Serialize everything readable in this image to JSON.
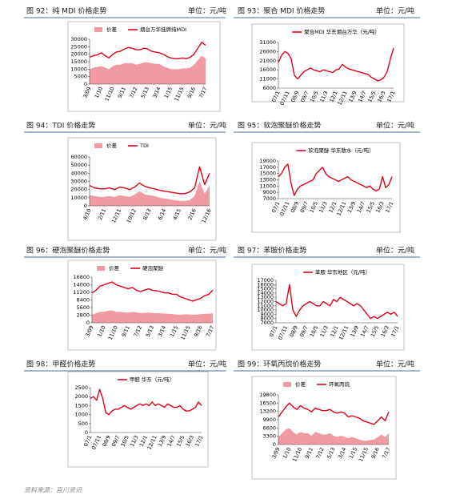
{
  "chart_data": [
    {
      "type": "line",
      "title": "图 92：纯 MDI 价格走势",
      "unit": "单位：元/吨",
      "categories": [
        "3/09",
        null,
        null,
        "1/10",
        null,
        null,
        "11/10",
        null,
        null,
        "9/11",
        null,
        null,
        "7/12",
        null,
        null,
        "5/13",
        null,
        null,
        "3/14",
        null,
        null,
        "1/15",
        null,
        null,
        "11/15",
        null,
        null,
        "9/16",
        null,
        null,
        "7/17"
      ],
      "ylim": [
        0,
        30000
      ],
      "yticks": [
        0,
        5000,
        10000,
        15000,
        20000,
        25000,
        30000
      ],
      "series": [
        {
          "name": "价差",
          "kind": "area",
          "color": "#f29aa3",
          "values": [
            10000,
            11000,
            11500,
            12000,
            11000,
            10000,
            12000,
            13000,
            13000,
            14000,
            14000,
            14000,
            13000,
            13500,
            14500,
            14500,
            14000,
            13500,
            13500,
            12000,
            11000,
            10000,
            10000,
            10000,
            10500,
            10500,
            11000,
            13000,
            16000,
            19000,
            17000
          ]
        },
        {
          "name": "烟台万华挂牌纯MDI",
          "kind": "line",
          "color": "#e3001b",
          "values": [
            18000,
            19000,
            19500,
            21000,
            19000,
            17500,
            20000,
            21500,
            22000,
            23500,
            24500,
            24000,
            23000,
            23000,
            24000,
            23500,
            22000,
            21500,
            21000,
            20000,
            18500,
            17500,
            17000,
            17000,
            17500,
            17000,
            18000,
            20000,
            24000,
            28000,
            26000
          ]
        }
      ]
    },
    {
      "type": "line",
      "title": "图 93：聚合 MDI 价格走势",
      "unit": "单位：元/吨",
      "categories": [
        "07/1",
        null,
        null,
        "07/11",
        null,
        null,
        "08/9",
        null,
        null,
        "09/7",
        null,
        null,
        "10/5",
        null,
        null,
        "11/3",
        null,
        null,
        "12/1",
        null,
        null,
        "12/11",
        null,
        null,
        "13/9",
        null,
        null,
        "14/7",
        null,
        null,
        "15/5",
        null,
        null,
        "16/3",
        null,
        null,
        "17/1"
      ],
      "ylim": [
        6000,
        31000
      ],
      "yticks": [
        6000,
        11000,
        16000,
        21000,
        26000,
        31000
      ],
      "series": [
        {
          "name": "聚合MDI 华东烟台万华（元/吨）",
          "kind": "line",
          "color": "#e3001b",
          "values": [
            20000,
            24000,
            26000,
            25000,
            22000,
            13000,
            11000,
            13000,
            15000,
            16000,
            17000,
            16000,
            15500,
            15000,
            16000,
            15500,
            15000,
            14500,
            16000,
            16500,
            19000,
            17500,
            16500,
            16000,
            15500,
            15000,
            14500,
            14000,
            13500,
            12000,
            11000,
            10000,
            10500,
            12000,
            15000,
            22000,
            28000
          ]
        }
      ]
    },
    {
      "type": "line",
      "title": "图 94：TDI 价格走势",
      "unit": "单位：元/吨",
      "categories": [
        "4/10",
        null,
        null,
        "2/11",
        null,
        null,
        "12/11",
        null,
        null,
        "10/12",
        null,
        null,
        "8/13",
        null,
        null,
        "6/14",
        null,
        null,
        "4/15",
        null,
        null,
        "2/16",
        null,
        null,
        "12/16"
      ],
      "ylim": [
        0,
        60000
      ],
      "yticks": [
        0,
        10000,
        20000,
        30000,
        40000,
        50000,
        60000
      ],
      "series": [
        {
          "name": "价差",
          "kind": "area",
          "color": "#f29aa3",
          "values": [
            13000,
            12000,
            11000,
            11000,
            12000,
            11000,
            13000,
            12000,
            11000,
            14000,
            18000,
            14000,
            13000,
            12000,
            10000,
            9000,
            8000,
            7000,
            6000,
            6000,
            7000,
            12000,
            30000,
            15000,
            25000
          ]
        },
        {
          "name": "TDI",
          "kind": "line",
          "color": "#e3001b",
          "values": [
            25000,
            22000,
            21000,
            21000,
            22000,
            20000,
            23000,
            22000,
            20000,
            23000,
            28000,
            24000,
            22000,
            21000,
            19000,
            18000,
            17000,
            16000,
            15000,
            15000,
            17000,
            22000,
            48000,
            26000,
            40000
          ]
        }
      ]
    },
    {
      "type": "line",
      "title": "图 95：软泡聚醚价格走势",
      "unit": "单位：元/吨",
      "categories": [
        "07/1",
        null,
        null,
        "07/11",
        null,
        null,
        "08/9",
        null,
        null,
        "09/7",
        null,
        null,
        "10/5",
        null,
        null,
        "11/3",
        null,
        null,
        "12/1",
        null,
        null,
        "12/11",
        null,
        null,
        "13/9",
        null,
        null,
        "14/7",
        null,
        null,
        "15/5",
        null,
        null,
        "16/3",
        null,
        null,
        "17/1"
      ],
      "ylim": [
        7000,
        19000
      ],
      "yticks": [
        7000,
        9000,
        11000,
        13000,
        15000,
        17000,
        19000
      ],
      "series": [
        {
          "name": "软泡聚醚 华东散水（元/吨）",
          "kind": "line",
          "color": "#e3001b",
          "values": [
            14000,
            15000,
            17000,
            18000,
            12000,
            8000,
            10000,
            11000,
            11500,
            12000,
            12500,
            13000,
            15000,
            16000,
            17000,
            15000,
            14000,
            13500,
            13000,
            12500,
            13000,
            13500,
            14000,
            13000,
            12500,
            12000,
            11500,
            11000,
            10500,
            11000,
            10000,
            9500,
            10000,
            14000,
            10500,
            11500,
            14000
          ]
        }
      ]
    },
    {
      "type": "line",
      "title": "图 96：硬泡聚醚价格走势",
      "unit": "单位：元/吨",
      "categories": [
        "3/09",
        null,
        null,
        "1/10",
        null,
        null,
        "11/10",
        null,
        null,
        "9/11",
        null,
        null,
        "7/12",
        null,
        null,
        "5/13",
        null,
        null,
        "3/14",
        null,
        null,
        "1/15",
        null,
        null,
        "11/15",
        null,
        null,
        "9/16",
        null,
        null,
        "7/17"
      ],
      "ylim": [
        0,
        16800
      ],
      "yticks": [
        0,
        2800,
        5600,
        8400,
        11200,
        14000,
        16800
      ],
      "series": [
        {
          "name": "价差",
          "kind": "area",
          "color": "#f29aa3",
          "values": [
            3000,
            3500,
            4000,
            4000,
            4500,
            4500,
            4000,
            4000,
            3800,
            3800,
            4000,
            3800,
            3600,
            3600,
            3800,
            3600,
            3500,
            3500,
            3400,
            3300,
            3200,
            3000,
            3000,
            3100,
            3100,
            3000,
            3000,
            3200,
            3300,
            3300,
            3500
          ]
        },
        {
          "name": "硬泡聚醚",
          "kind": "line",
          "color": "#e3001b",
          "values": [
            11000,
            12000,
            13500,
            14000,
            14500,
            15000,
            14000,
            13500,
            13000,
            12500,
            13000,
            12000,
            11500,
            12000,
            12500,
            12000,
            11800,
            11500,
            11000,
            11000,
            10500,
            10500,
            9500,
            9000,
            8500,
            8000,
            8500,
            9000,
            10000,
            10500,
            12000
          ]
        }
      ]
    },
    {
      "type": "line",
      "title": "图 97：苯胺价格走势",
      "unit": "单位：元/吨",
      "categories": [
        "07/1",
        null,
        null,
        "07/11",
        null,
        null,
        "08/9",
        null,
        null,
        "09/7",
        null,
        null,
        "10/5",
        null,
        null,
        "11/3",
        null,
        null,
        "12/1",
        null,
        null,
        "12/11",
        null,
        null,
        "13/9",
        null,
        null,
        "14/7",
        null,
        null,
        "15/5",
        null,
        null,
        "16/3",
        null,
        null,
        "17/1"
      ],
      "ylim": [
        7000,
        17000
      ],
      "yticks": [
        7000,
        8000,
        9000,
        10000,
        11000,
        12000,
        13000,
        14000,
        15000,
        16000,
        17000
      ],
      "series": [
        {
          "name": "苯胺 华东地区（元/吨）",
          "kind": "line",
          "color": "#e3001b",
          "values": [
            12000,
            11500,
            11000,
            11500,
            16000,
            10000,
            8500,
            10000,
            11000,
            11500,
            12000,
            11500,
            11000,
            11000,
            12000,
            11500,
            11000,
            12500,
            12000,
            13000,
            12500,
            12000,
            11500,
            11000,
            11500,
            11000,
            10000,
            9000,
            8000,
            8500,
            8000,
            8500,
            9000,
            9500,
            9000,
            9500,
            8500
          ]
        }
      ]
    },
    {
      "type": "line",
      "title": "图 98：甲醛价格走势",
      "unit": "单位：元/吨",
      "categories": [
        "07/1",
        null,
        null,
        "07/11",
        null,
        null,
        "08/9",
        null,
        null,
        "09/7",
        null,
        null,
        "10/5",
        null,
        null,
        "11/3",
        null,
        null,
        "12/1",
        null,
        null,
        "12/11",
        null,
        null,
        "13/9",
        null,
        null,
        "14/7",
        null,
        null,
        "15/5",
        null,
        null,
        "16/3",
        null,
        null,
        "17/1"
      ],
      "ylim": [
        0,
        2500
      ],
      "yticks": [
        0,
        500,
        1000,
        1500,
        2000,
        2500
      ],
      "series": [
        {
          "name": "甲醛 华东（元/吨）",
          "kind": "line",
          "color": "#e3001b",
          "values": [
            1900,
            2000,
            1800,
            2400,
            1900,
            1100,
            1000,
            1200,
            1300,
            1300,
            1400,
            1500,
            1400,
            1300,
            1400,
            1500,
            1600,
            1500,
            1600,
            1500,
            1700,
            1500,
            1600,
            1500,
            1400,
            1600,
            1500,
            1400,
            1400,
            1500,
            1300,
            1200,
            1200,
            1300,
            1400,
            1700,
            1500
          ]
        }
      ]
    },
    {
      "type": "line",
      "title": "图 99：环氧丙烷价格走势",
      "unit": "单位：元/吨",
      "categories": [
        "3/09",
        null,
        null,
        "1/10",
        null,
        null,
        "11/10",
        null,
        null,
        "9/11",
        null,
        null,
        "7/12",
        null,
        null,
        "5/13",
        null,
        null,
        "3/14",
        null,
        null,
        "1/15",
        null,
        null,
        "11/15",
        null,
        null,
        "9/16",
        null,
        null,
        "7/17"
      ],
      "ylim": [
        0,
        19800
      ],
      "yticks": [
        0,
        3300,
        6600,
        9900,
        13200,
        16500,
        19800
      ],
      "series": [
        {
          "name": "价差",
          "kind": "area",
          "color": "#f29aa3",
          "values": [
            3000,
            4500,
            6000,
            6500,
            5000,
            4000,
            5000,
            4500,
            4500,
            3500,
            5000,
            4500,
            4000,
            4000,
            4500,
            3500,
            3000,
            3500,
            3000,
            2500,
            3000,
            2500,
            2000,
            1500,
            1500,
            1800,
            2000,
            3000,
            4000,
            3000,
            4500
          ]
        },
        {
          "name": "环氧丙烷",
          "kind": "line",
          "color": "#e3001b",
          "values": [
            11000,
            13000,
            15000,
            16500,
            15000,
            14000,
            15500,
            14500,
            14000,
            13000,
            14500,
            14000,
            13500,
            13500,
            14000,
            13000,
            12500,
            13000,
            12500,
            11000,
            11500,
            11000,
            10500,
            9500,
            9000,
            8500,
            8000,
            9500,
            11000,
            9500,
            13000
          ]
        }
      ]
    }
  ],
  "source": "资料来源：百川资讯"
}
